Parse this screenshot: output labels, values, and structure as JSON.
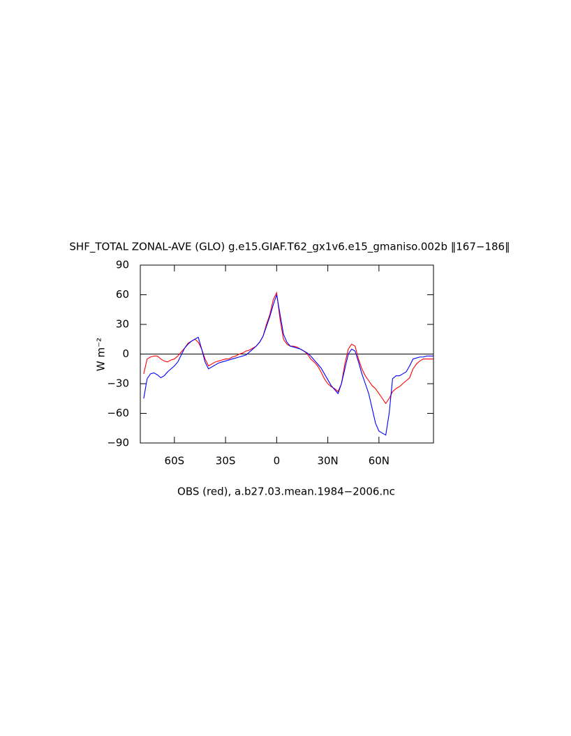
{
  "chart_data": {
    "type": "line",
    "title": "SHF_TOTAL ZONAL-AVE (GLO) g.e15.GIAF.T62_gx1v6.e15_gmaniso.002b ‖167−186‖",
    "y_label": "W m⁻²",
    "subtitle": "OBS (red), a.b27.03.mean.1984−2006.nc",
    "x": [
      -78,
      -76,
      -74,
      -72,
      -70,
      -68,
      -66,
      -64,
      -62,
      -60,
      -58,
      -56,
      -54,
      -52,
      -50,
      -48,
      -46,
      -44,
      -42,
      -40,
      -38,
      -36,
      -34,
      -32,
      -30,
      -28,
      -26,
      -24,
      -22,
      -20,
      -18,
      -16,
      -14,
      -12,
      -10,
      -8,
      -6,
      -4,
      -2,
      0,
      2,
      4,
      6,
      8,
      10,
      12,
      14,
      16,
      18,
      20,
      22,
      24,
      26,
      28,
      30,
      32,
      34,
      36,
      38,
      40,
      42,
      44,
      46,
      48,
      50,
      52,
      54,
      56,
      58,
      60,
      62,
      64,
      66,
      68,
      70,
      72,
      74,
      76,
      78,
      80,
      82,
      84,
      86,
      88,
      90,
      92
    ],
    "series": [
      {
        "color": "#ff0000",
        "values": [
          -20,
          -5,
          -3,
          -2,
          -2,
          -5,
          -7,
          -8,
          -6,
          -5,
          -2,
          2,
          6,
          11,
          13,
          15,
          12,
          5,
          -5,
          -12,
          -10,
          -8,
          -7,
          -6,
          -5,
          -5,
          -3,
          -2,
          0,
          1,
          3,
          4,
          6,
          8,
          12,
          18,
          30,
          40,
          55,
          62,
          35,
          15,
          10,
          8,
          8,
          7,
          5,
          3,
          0,
          -5,
          -8,
          -12,
          -18,
          -25,
          -30,
          -33,
          -35,
          -38,
          -30,
          -10,
          5,
          10,
          8,
          -5,
          -15,
          -22,
          -27,
          -32,
          -35,
          -40,
          -45,
          -50,
          -45,
          -38,
          -35,
          -33,
          -30,
          -27,
          -24,
          -15,
          -10,
          -7,
          -5,
          -5,
          -5,
          -5
        ]
      },
      {
        "color": "#0000ff",
        "values": [
          -45,
          -25,
          -20,
          -19,
          -21,
          -24,
          -22,
          -18,
          -15,
          -12,
          -8,
          -1,
          6,
          10,
          13,
          15,
          17,
          5,
          -8,
          -15,
          -13,
          -11,
          -9,
          -8,
          -7,
          -6,
          -5,
          -4,
          -3,
          -2,
          -1,
          2,
          5,
          8,
          12,
          18,
          28,
          38,
          50,
          60,
          40,
          20,
          12,
          8,
          7,
          6,
          5,
          3,
          1,
          -2,
          -6,
          -10,
          -14,
          -20,
          -26,
          -32,
          -36,
          -40,
          -30,
          -15,
          0,
          5,
          3,
          -8,
          -20,
          -30,
          -40,
          -55,
          -70,
          -78,
          -80,
          -82,
          -60,
          -25,
          -22,
          -22,
          -20,
          -18,
          -12,
          -5,
          -4,
          -3,
          -3,
          -2,
          -2,
          -2
        ]
      }
    ],
    "xlim": [
      -80,
      92
    ],
    "xticks": [
      {
        "value": -60,
        "label": "60S"
      },
      {
        "value": -30,
        "label": "30S"
      },
      0,
      {
        "value": 30,
        "label": "30N"
      },
      {
        "value": 60,
        "label": "60N"
      }
    ],
    "ylim": [
      -90,
      90
    ],
    "yticks": [
      {
        "value": -90,
        "label": "−90"
      },
      {
        "value": -60,
        "label": "−60"
      },
      {
        "value": -30,
        "label": "−30"
      },
      0,
      30,
      60,
      90
    ],
    "hlines": [
      0
    ]
  }
}
